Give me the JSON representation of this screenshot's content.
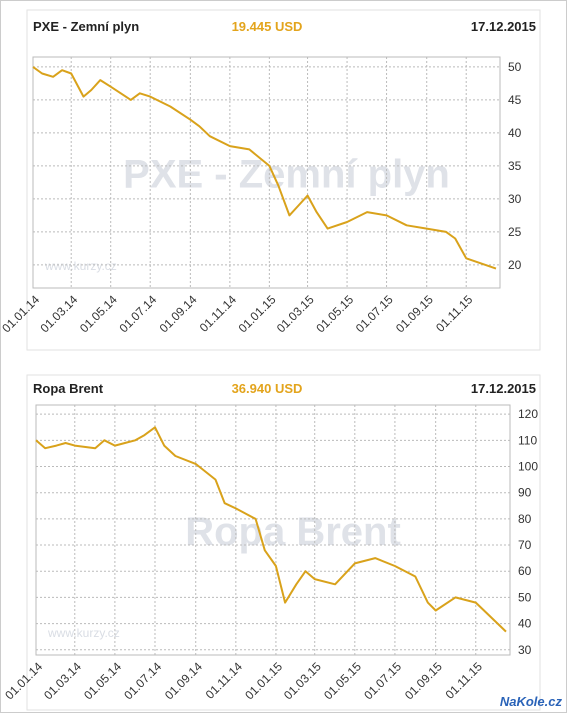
{
  "chart_data": [
    {
      "type": "line",
      "title": "PXE - Zemní plyn",
      "price": "19.445 USD",
      "date": "17.12.2015",
      "source": "www.kurzy.cz",
      "x": [
        "01.01.14",
        "15.01.14",
        "01.02.14",
        "15.02.14",
        "01.03.14",
        "20.03.14",
        "01.04.14",
        "15.04.14",
        "01.05.14",
        "01.06.14",
        "15.06.14",
        "01.07.14",
        "01.08.14",
        "01.09.14",
        "15.09.14",
        "01.10.14",
        "01.11.14",
        "01.12.14",
        "01.01.15",
        "15.01.15",
        "01.02.15",
        "15.02.15",
        "01.03.15",
        "15.03.15",
        "01.04.15",
        "01.05.15",
        "01.06.15",
        "01.07.15",
        "01.08.15",
        "01.09.15",
        "01.10.15",
        "15.10.15",
        "01.11.15",
        "17.12.15"
      ],
      "values": [
        50,
        49,
        48.5,
        49.5,
        49,
        45.5,
        46.5,
        48,
        47,
        45,
        46,
        45.5,
        44,
        42,
        41,
        39.5,
        38,
        37.5,
        35,
        32,
        27.5,
        29,
        30.5,
        28,
        25.5,
        26.5,
        28,
        27.5,
        26,
        25.5,
        25,
        24,
        21,
        19.445
      ],
      "color": "#d9a21b",
      "ylim": [
        16.5,
        51.5
      ],
      "yticks": [
        20,
        25,
        30,
        35,
        40,
        45,
        50
      ],
      "xlim": [
        "01.01.14",
        "17.12.15"
      ],
      "xticks": [
        "01.01.14",
        "01.03.14",
        "01.05.14",
        "01.07.14",
        "01.09.14",
        "01.11.14",
        "01.01.15",
        "01.03.15",
        "01.05.15",
        "01.07.15",
        "01.09.15",
        "01.11.15"
      ],
      "grid": true
    },
    {
      "type": "line",
      "title": "Ropa Brent",
      "price": "36.940 USD",
      "date": "17.12.2015",
      "source": "www.kurzy.cz",
      "x": [
        "01.01.14",
        "15.01.14",
        "01.02.14",
        "15.02.14",
        "01.03.14",
        "01.04.14",
        "15.04.14",
        "01.05.14",
        "01.06.14",
        "15.06.14",
        "01.07.14",
        "15.07.14",
        "01.08.14",
        "01.09.14",
        "01.10.14",
        "15.10.14",
        "01.11.14",
        "01.12.14",
        "15.12.14",
        "01.01.15",
        "15.01.15",
        "01.02.15",
        "15.02.15",
        "01.03.15",
        "01.04.15",
        "01.05.15",
        "01.06.15",
        "01.07.15",
        "01.08.15",
        "20.08.15",
        "01.09.15",
        "01.10.15",
        "01.11.15",
        "17.12.15"
      ],
      "values": [
        110,
        107,
        108,
        109,
        108,
        107,
        110,
        108,
        110,
        112,
        115,
        108,
        104,
        101,
        95,
        86,
        84,
        80,
        68,
        62,
        48,
        55,
        60,
        57,
        55,
        63,
        65,
        62,
        58,
        48,
        45,
        50,
        48,
        36.94
      ],
      "color": "#d9a21b",
      "ylim": [
        28,
        123.5
      ],
      "yticks": [
        30,
        40,
        50,
        60,
        70,
        80,
        90,
        100,
        110,
        120
      ],
      "xlim": [
        "01.01.14",
        "17.12.15"
      ],
      "xticks": [
        "01.01.14",
        "01.03.14",
        "01.05.14",
        "01.07.14",
        "01.09.14",
        "01.11.14",
        "01.01.15",
        "01.03.15",
        "01.05.15",
        "01.07.15",
        "01.09.15",
        "01.11.15"
      ],
      "grid": true
    }
  ],
  "logo": "NaKole.cz"
}
